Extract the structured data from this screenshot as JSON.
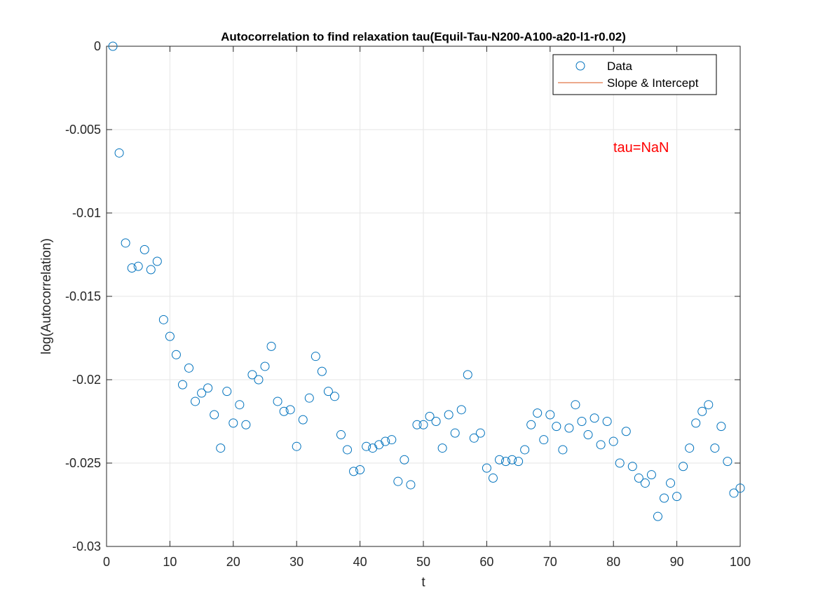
{
  "chart_data": {
    "type": "scatter",
    "title": "Autocorrelation to find relaxation tau(Equil-Tau-N200-A100-a20-l1-r0.02)",
    "xlabel": "t",
    "ylabel": "log(Autocorrelation)",
    "xlim": [
      0,
      100
    ],
    "ylim": [
      -0.03,
      0
    ],
    "xticks": [
      "0",
      "10",
      "20",
      "30",
      "40",
      "50",
      "60",
      "70",
      "80",
      "90",
      "100"
    ],
    "yticks": [
      "0",
      "-0.005",
      "-0.01",
      "-0.015",
      "-0.02",
      "-0.025",
      "-0.03"
    ],
    "grid": true,
    "legend_position": "top-right",
    "annotation": "tau=NaN",
    "annotation_color": "#ff0000",
    "series": [
      {
        "name": "Data",
        "marker": "circle",
        "color": "#0072bd",
        "x": [
          1,
          2,
          3,
          4,
          5,
          6,
          7,
          8,
          9,
          10,
          11,
          12,
          13,
          14,
          15,
          16,
          17,
          18,
          19,
          20,
          21,
          22,
          23,
          24,
          25,
          26,
          27,
          28,
          29,
          30,
          31,
          32,
          33,
          34,
          35,
          36,
          37,
          38,
          39,
          40,
          41,
          42,
          43,
          44,
          45,
          46,
          47,
          48,
          49,
          50,
          51,
          52,
          53,
          54,
          55,
          56,
          57,
          58,
          59,
          60,
          61,
          62,
          63,
          64,
          65,
          66,
          67,
          68,
          69,
          70,
          71,
          72,
          73,
          74,
          75,
          76,
          77,
          78,
          79,
          80,
          81,
          82,
          83,
          84,
          85,
          86,
          87,
          88,
          89,
          90,
          91,
          92,
          93,
          94,
          95,
          96,
          97,
          98,
          99,
          100
        ],
        "y": [
          0,
          -0.0064,
          -0.0118,
          -0.0133,
          -0.0132,
          -0.0122,
          -0.0134,
          -0.0129,
          -0.0164,
          -0.0174,
          -0.0185,
          -0.0203,
          -0.0193,
          -0.0213,
          -0.0208,
          -0.0205,
          -0.0221,
          -0.0241,
          -0.0207,
          -0.0226,
          -0.0215,
          -0.0227,
          -0.0197,
          -0.02,
          -0.0192,
          -0.018,
          -0.0213,
          -0.0219,
          -0.0218,
          -0.024,
          -0.0224,
          -0.0211,
          -0.0186,
          -0.0195,
          -0.0207,
          -0.021,
          -0.0233,
          -0.0242,
          -0.0255,
          -0.0254,
          -0.024,
          -0.0241,
          -0.0239,
          -0.0237,
          -0.0236,
          -0.0261,
          -0.0248,
          -0.0263,
          -0.0227,
          -0.0227,
          -0.0222,
          -0.0225,
          -0.0241,
          -0.0221,
          -0.0232,
          -0.0218,
          -0.0197,
          -0.0235,
          -0.0232,
          -0.0253,
          -0.0259,
          -0.0248,
          -0.0249,
          -0.0248,
          -0.0249,
          -0.0242,
          -0.0227,
          -0.022,
          -0.0236,
          -0.0221,
          -0.0228,
          -0.0242,
          -0.0229,
          -0.0215,
          -0.0225,
          -0.0233,
          -0.0223,
          -0.0239,
          -0.0225,
          -0.0237,
          -0.025,
          -0.0231,
          -0.0252,
          -0.0259,
          -0.0262,
          -0.0257,
          -0.0282,
          -0.0271,
          -0.0262,
          -0.027,
          -0.0252,
          -0.0241,
          -0.0226,
          -0.0219,
          -0.0215,
          -0.0241,
          -0.0228,
          -0.0249,
          -0.0268,
          -0.0265
        ]
      },
      {
        "name": "Slope & Intercept",
        "marker": "line",
        "color": "#d95319",
        "x": [],
        "y": []
      }
    ]
  }
}
